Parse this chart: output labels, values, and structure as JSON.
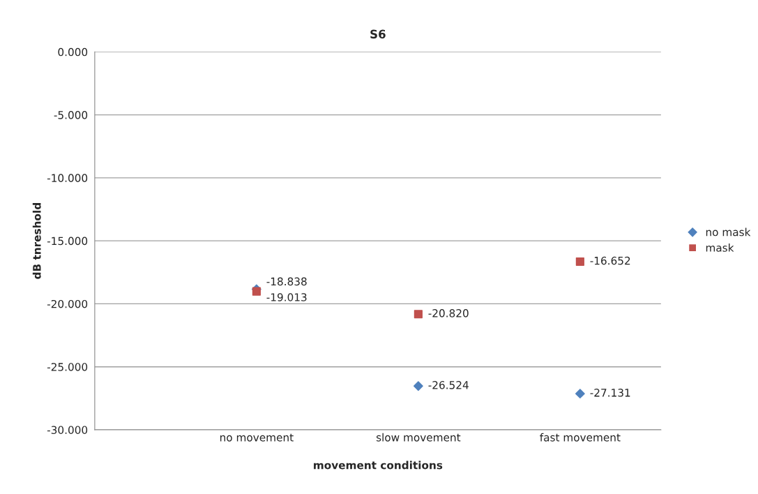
{
  "chart_data": {
    "type": "scatter",
    "title": "S6",
    "xlabel": "movement conditions",
    "ylabel": "dB tnreshold",
    "categories": [
      "no movement",
      "slow movement",
      "fast movement"
    ],
    "series": [
      {
        "name": "no mask",
        "color": "#4f81bd",
        "marker": "diamond",
        "values": [
          -18.838,
          -26.524,
          -27.131
        ],
        "value_labels": [
          "-18.838",
          "-26.524",
          "-27.131"
        ]
      },
      {
        "name": "mask",
        "color": "#c0504d",
        "marker": "square",
        "values": [
          -19.013,
          -20.82,
          -16.652
        ],
        "value_labels": [
          "-19.013",
          "-20.820",
          "-16.652"
        ]
      }
    ],
    "ylim": [
      -30,
      0
    ],
    "yticks": [
      {
        "value": 0,
        "label": "0.000"
      },
      {
        "value": -5,
        "label": "-5.000"
      },
      {
        "value": -10,
        "label": "-10.000"
      },
      {
        "value": -15,
        "label": "-15.000"
      },
      {
        "value": -20,
        "label": "-20.000"
      },
      {
        "value": -25,
        "label": "-25.000"
      },
      {
        "value": -30,
        "label": "-30.000"
      }
    ],
    "grid": "y",
    "legend": "right"
  }
}
